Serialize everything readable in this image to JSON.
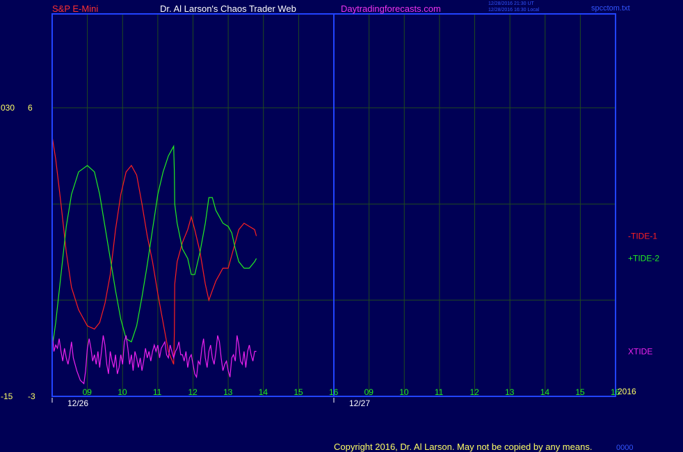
{
  "header": {
    "symbol": "S&P E-Mini",
    "title": "Dr. Al Larson's Chaos Trader Web",
    "site": "Daytradingforecasts.com",
    "time_ut": "12/28/2016 21:30 UT",
    "time_local": "12/28/2016 16:30 Local",
    "file": "spcctom.txt"
  },
  "footer": {
    "copyright": "Copyright 2016, Dr. Al Larson. May not be copied by any means.",
    "tag": "0000"
  },
  "colors": {
    "background": "#000055",
    "frame": "#2244ff",
    "grid": "#1f4a1f",
    "tide1": "#ff2020",
    "tide2": "#22ee22",
    "xtide": "#ee22ee",
    "axis_text": "#ffff66",
    "hour_text": "#22ee22",
    "header_red": "#ff3030",
    "header_white": "#ffffff",
    "header_magenta": "#ee33ee",
    "header_blue": "#3355ff"
  },
  "chart_data": {
    "type": "line",
    "y_axis_left_labels": [
      {
        "outer": "030",
        "inner": "6"
      },
      {
        "outer": "-15",
        "inner": "-3"
      }
    ],
    "ylim": [
      -3,
      6
    ],
    "year_label": "2016",
    "x_time_labels": [
      "09",
      "10",
      "11",
      "12",
      "13",
      "14",
      "15",
      "16",
      "09",
      "10",
      "11",
      "12",
      "13",
      "14",
      "15",
      "16"
    ],
    "date_labels": [
      "12/26",
      "12/27"
    ],
    "series": [
      {
        "name": "-TIDE-1",
        "points": [
          [
            0,
            5.1
          ],
          [
            0.1,
            4.4
          ],
          [
            0.25,
            3.0
          ],
          [
            0.4,
            1.5
          ],
          [
            0.55,
            0.4
          ],
          [
            0.75,
            -0.3
          ],
          [
            1.0,
            -0.8
          ],
          [
            1.2,
            -0.9
          ],
          [
            1.35,
            -0.7
          ],
          [
            1.5,
            -0.1
          ],
          [
            1.65,
            0.8
          ],
          [
            1.8,
            2.2
          ],
          [
            1.95,
            3.3
          ],
          [
            2.1,
            4.0
          ],
          [
            2.25,
            4.2
          ],
          [
            2.4,
            3.9
          ],
          [
            2.55,
            3.0
          ],
          [
            2.7,
            2.0
          ],
          [
            2.85,
            1.2
          ],
          [
            3.0,
            0.2
          ],
          [
            3.15,
            -0.7
          ],
          [
            3.3,
            -1.6
          ],
          [
            3.45,
            -2.0
          ],
          [
            3.47,
            -1.0
          ],
          [
            3.48,
            0.5
          ],
          [
            3.55,
            1.2
          ],
          [
            3.7,
            1.8
          ],
          [
            3.85,
            2.2
          ],
          [
            3.95,
            2.6
          ],
          [
            4.05,
            2.2
          ],
          [
            4.2,
            1.5
          ],
          [
            4.35,
            0.5
          ],
          [
            4.45,
            0.0
          ],
          [
            4.55,
            0.3
          ],
          [
            4.65,
            0.6
          ],
          [
            4.75,
            0.8
          ],
          [
            4.85,
            1.0
          ],
          [
            5.0,
            1.0
          ],
          [
            5.1,
            1.4
          ],
          [
            5.2,
            1.8
          ],
          [
            5.3,
            2.2
          ],
          [
            5.45,
            2.4
          ],
          [
            5.6,
            2.3
          ],
          [
            5.75,
            2.2
          ],
          [
            5.8,
            2.0
          ]
        ]
      },
      {
        "name": "+TIDE-2",
        "points": [
          [
            0,
            -1.5
          ],
          [
            0.1,
            -0.7
          ],
          [
            0.25,
            0.8
          ],
          [
            0.4,
            2.3
          ],
          [
            0.55,
            3.3
          ],
          [
            0.75,
            4.0
          ],
          [
            1.0,
            4.2
          ],
          [
            1.2,
            4.0
          ],
          [
            1.35,
            3.3
          ],
          [
            1.5,
            2.3
          ],
          [
            1.65,
            1.3
          ],
          [
            1.8,
            0.3
          ],
          [
            1.95,
            -0.6
          ],
          [
            2.1,
            -1.2
          ],
          [
            2.25,
            -1.3
          ],
          [
            2.4,
            -0.8
          ],
          [
            2.55,
            0.1
          ],
          [
            2.7,
            1.1
          ],
          [
            2.85,
            2.2
          ],
          [
            3.0,
            3.3
          ],
          [
            3.15,
            4.0
          ],
          [
            3.3,
            4.5
          ],
          [
            3.45,
            4.8
          ],
          [
            3.47,
            4.0
          ],
          [
            3.48,
            3.0
          ],
          [
            3.55,
            2.4
          ],
          [
            3.7,
            1.6
          ],
          [
            3.85,
            1.3
          ],
          [
            3.95,
            0.8
          ],
          [
            4.05,
            0.8
          ],
          [
            4.2,
            1.5
          ],
          [
            4.35,
            2.4
          ],
          [
            4.45,
            3.2
          ],
          [
            4.55,
            3.2
          ],
          [
            4.65,
            2.8
          ],
          [
            4.75,
            2.6
          ],
          [
            4.85,
            2.4
          ],
          [
            5.0,
            2.3
          ],
          [
            5.1,
            2.1
          ],
          [
            5.2,
            1.6
          ],
          [
            5.3,
            1.2
          ],
          [
            5.45,
            1.0
          ],
          [
            5.6,
            1.0
          ],
          [
            5.75,
            1.2
          ],
          [
            5.8,
            1.3
          ]
        ]
      },
      {
        "name": "XTIDE",
        "points": [
          [
            0,
            -1.0
          ],
          [
            0.05,
            -1.6
          ],
          [
            0.1,
            -1.4
          ],
          [
            0.15,
            -1.5
          ],
          [
            0.2,
            -1.2
          ],
          [
            0.25,
            -1.6
          ],
          [
            0.3,
            -1.9
          ],
          [
            0.35,
            -1.5
          ],
          [
            0.4,
            -1.8
          ],
          [
            0.45,
            -2.0
          ],
          [
            0.5,
            -1.7
          ],
          [
            0.55,
            -1.3
          ],
          [
            0.6,
            -1.8
          ],
          [
            0.7,
            -2.2
          ],
          [
            0.8,
            -2.5
          ],
          [
            0.9,
            -2.6
          ],
          [
            0.95,
            -2.2
          ],
          [
            1.0,
            -1.5
          ],
          [
            1.05,
            -1.2
          ],
          [
            1.1,
            -1.5
          ],
          [
            1.15,
            -1.9
          ],
          [
            1.2,
            -1.7
          ],
          [
            1.25,
            -2.0
          ],
          [
            1.3,
            -1.6
          ],
          [
            1.35,
            -2.1
          ],
          [
            1.4,
            -1.6
          ],
          [
            1.45,
            -1.1
          ],
          [
            1.5,
            -1.4
          ],
          [
            1.55,
            -2.0
          ],
          [
            1.6,
            -2.3
          ],
          [
            1.65,
            -1.6
          ],
          [
            1.7,
            -1.9
          ],
          [
            1.75,
            -2.1
          ],
          [
            1.8,
            -1.7
          ],
          [
            1.85,
            -2.3
          ],
          [
            1.9,
            -2.1
          ],
          [
            1.95,
            -1.7
          ],
          [
            2.0,
            -2.0
          ],
          [
            2.05,
            -1.3
          ],
          [
            2.1,
            -1.1
          ],
          [
            2.15,
            -1.5
          ],
          [
            2.2,
            -2.0
          ],
          [
            2.25,
            -1.7
          ],
          [
            2.3,
            -2.2
          ],
          [
            2.35,
            -1.6
          ],
          [
            2.4,
            -1.8
          ],
          [
            2.45,
            -2.1
          ],
          [
            2.5,
            -1.8
          ],
          [
            2.55,
            -2.2
          ],
          [
            2.6,
            -1.9
          ],
          [
            2.65,
            -1.5
          ],
          [
            2.7,
            -1.8
          ],
          [
            2.75,
            -1.6
          ],
          [
            2.8,
            -1.9
          ],
          [
            2.85,
            -1.6
          ],
          [
            2.9,
            -1.4
          ],
          [
            2.95,
            -1.6
          ],
          [
            3.0,
            -1.4
          ],
          [
            3.05,
            -1.8
          ],
          [
            3.1,
            -1.5
          ],
          [
            3.15,
            -1.4
          ],
          [
            3.2,
            -1.3
          ],
          [
            3.25,
            -1.7
          ],
          [
            3.3,
            -1.8
          ],
          [
            3.35,
            -1.4
          ],
          [
            3.4,
            -1.6
          ],
          [
            3.45,
            -1.8
          ],
          [
            3.5,
            -1.6
          ],
          [
            3.55,
            -1.5
          ],
          [
            3.6,
            -1.3
          ],
          [
            3.65,
            -1.7
          ],
          [
            3.7,
            -1.7
          ],
          [
            3.75,
            -1.9
          ],
          [
            3.8,
            -1.6
          ],
          [
            3.85,
            -2.1
          ],
          [
            3.9,
            -1.8
          ],
          [
            3.95,
            -1.7
          ],
          [
            4.0,
            -2.0
          ],
          [
            4.05,
            -2.3
          ],
          [
            4.1,
            -2.4
          ],
          [
            4.15,
            -1.9
          ],
          [
            4.2,
            -2.0
          ],
          [
            4.25,
            -1.5
          ],
          [
            4.3,
            -1.2
          ],
          [
            4.35,
            -1.8
          ],
          [
            4.4,
            -2.1
          ],
          [
            4.45,
            -1.6
          ],
          [
            4.5,
            -1.4
          ],
          [
            4.55,
            -1.8
          ],
          [
            4.6,
            -2.0
          ],
          [
            4.65,
            -1.6
          ],
          [
            4.7,
            -1.1
          ],
          [
            4.75,
            -1.3
          ],
          [
            4.8,
            -1.8
          ],
          [
            4.85,
            -2.2
          ],
          [
            4.9,
            -2.0
          ],
          [
            4.95,
            -1.9
          ],
          [
            5.0,
            -2.2
          ],
          [
            5.05,
            -2.4
          ],
          [
            5.1,
            -1.8
          ],
          [
            5.15,
            -1.7
          ],
          [
            5.2,
            -1.9
          ],
          [
            5.25,
            -1.1
          ],
          [
            5.3,
            -1.4
          ],
          [
            5.35,
            -1.9
          ],
          [
            5.4,
            -2.0
          ],
          [
            5.45,
            -1.6
          ],
          [
            5.5,
            -2.1
          ],
          [
            5.55,
            -1.6
          ],
          [
            5.6,
            -1.4
          ],
          [
            5.65,
            -1.7
          ],
          [
            5.7,
            -1.9
          ],
          [
            5.75,
            -1.6
          ],
          [
            5.8,
            -1.6
          ]
        ]
      }
    ],
    "legend_placement": "right",
    "grid": true
  }
}
